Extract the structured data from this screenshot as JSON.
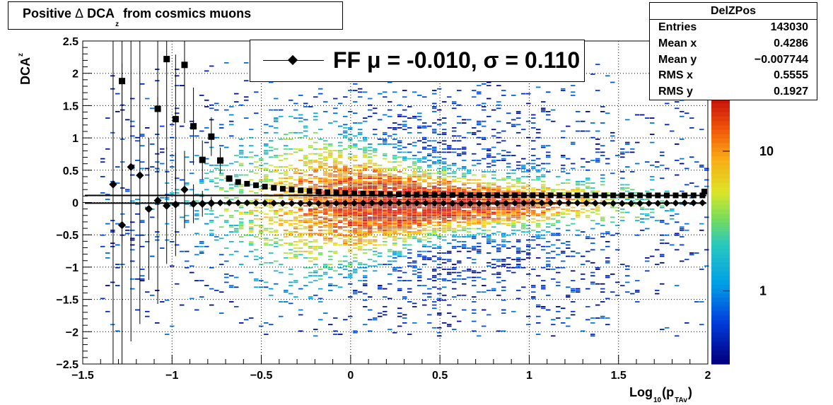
{
  "title": {
    "prefix": "Positive ",
    "delta": "Δ",
    "main": " DCA",
    "sub": "z",
    "suffix": " from cosmics muons"
  },
  "stats": {
    "name": "DelZPos",
    "rows": [
      {
        "label": "Entries",
        "value": "143030"
      },
      {
        "label": "Mean x",
        "value": "0.4286"
      },
      {
        "label": "Mean y",
        "value": "−0.007744"
      },
      {
        "label": "RMS x",
        "value": "0.5555"
      },
      {
        "label": "RMS y",
        "value": "0.1927"
      }
    ]
  },
  "legend": {
    "text": "FF μ = -0.010, σ =   0.110"
  },
  "axes": {
    "ylabel_main": "DCA",
    "ylabel_sub": "z",
    "xlabel_main": "Log",
    "xlabel_sub1": "10",
    "xlabel_mid": "(p",
    "xlabel_sub2": "TAv",
    "xlabel_end": ")"
  },
  "chart_data": {
    "type": "heatmap",
    "xlim": [
      -1.5,
      2
    ],
    "ylim": [
      -2.5,
      2.5
    ],
    "grid": true,
    "x_ticks": [
      "−1.5",
      "−1",
      "−0.5",
      "0",
      "0.5",
      "1",
      "1.5",
      "2"
    ],
    "x_tick_values": [
      -1.5,
      -1,
      -0.5,
      0,
      0.5,
      1,
      1.5,
      2
    ],
    "y_ticks": [
      "2.5",
      "2",
      "1.5",
      "1",
      "0.5",
      "0",
      "−0.5",
      "−1",
      "−1.5",
      "−2",
      "−2.5"
    ],
    "y_tick_values": [
      2.5,
      2,
      1.5,
      1,
      0.5,
      0,
      -0.5,
      -1,
      -1.5,
      -2,
      -2.5
    ],
    "colorbar": {
      "scale": "log",
      "labels": [
        "1",
        "10"
      ],
      "label_values": [
        1,
        10
      ],
      "range": [
        0.3,
        60
      ]
    },
    "horizontal_lines": [
      -0.01,
      0.11
    ],
    "mean_points": [
      {
        "x": -1.33,
        "y": 0.28,
        "err": 2.8
      },
      {
        "x": -1.28,
        "y": -0.35,
        "err": 2.5
      },
      {
        "x": -1.23,
        "y": 0.55,
        "err": 2.7
      },
      {
        "x": -1.18,
        "y": 0.42,
        "err": 2.3
      },
      {
        "x": -1.13,
        "y": -0.1,
        "err": 1.1
      },
      {
        "x": -1.08,
        "y": 0.03,
        "err": 1.6
      },
      {
        "x": -1.03,
        "y": -0.05,
        "err": 0.9
      },
      {
        "x": -0.98,
        "y": -0.03,
        "err": 0.8
      },
      {
        "x": -0.93,
        "y": 0.2,
        "err": 0.6
      },
      {
        "x": -0.88,
        "y": -0.02,
        "err": 0.3
      },
      {
        "x": -0.83,
        "y": -0.02,
        "err": 0.2
      },
      {
        "x": -0.78,
        "y": -0.01,
        "err": 0.1
      }
    ],
    "sigma_points": [
      {
        "x": -1.28,
        "y": 1.88,
        "err": 2.5
      },
      {
        "x": -1.08,
        "y": 1.45,
        "err": 1.7
      },
      {
        "x": -1.03,
        "y": 2.22,
        "err": 1.4
      },
      {
        "x": -0.98,
        "y": 1.29,
        "err": 1.0
      },
      {
        "x": -0.93,
        "y": 2.13,
        "err": 0.9
      },
      {
        "x": -0.88,
        "y": 1.18,
        "err": 0.6
      },
      {
        "x": -0.83,
        "y": 0.66,
        "err": 0.3
      },
      {
        "x": -0.78,
        "y": 1.02,
        "err": 0.3
      },
      {
        "x": -0.73,
        "y": 0.65,
        "err": 0.2
      },
      {
        "x": -0.68,
        "y": 0.37,
        "err": 0.05
      }
    ]
  }
}
